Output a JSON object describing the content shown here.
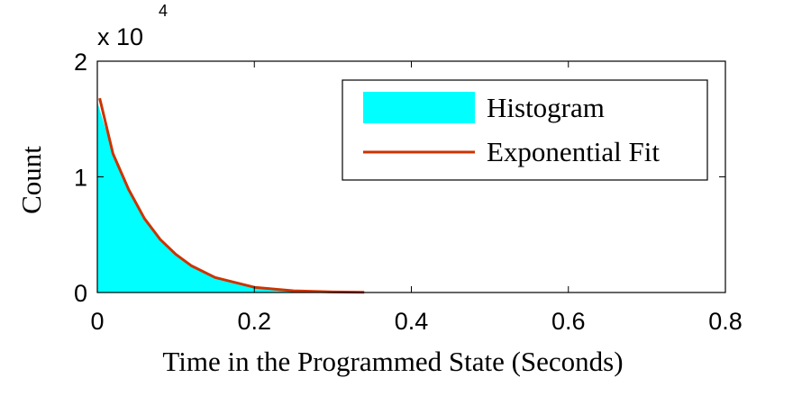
{
  "chart_data": {
    "type": "area",
    "xlabel": "Time in the Programmed State (Seconds)",
    "ylabel": "Count",
    "xlim": [
      0,
      0.8
    ],
    "ylim": [
      0,
      20000
    ],
    "x_ticks": [
      "0",
      "0.2",
      "0.4",
      "0.6",
      "0.8"
    ],
    "y_ticks": [
      "0",
      "1",
      "2"
    ],
    "y_exponent_base": "x 10",
    "y_exponent_power": "4",
    "grid": false,
    "legend_position": "top-right",
    "series": [
      {
        "name": "Histogram",
        "style": "filled-area",
        "color": "#00ffff",
        "x": [
          0,
          0.02,
          0.04,
          0.06,
          0.08,
          0.1,
          0.12,
          0.15,
          0.2,
          0.25,
          0.3,
          0.34
        ],
        "y": [
          16500,
          12000,
          8900,
          6400,
          4600,
          3300,
          2300,
          1300,
          450,
          150,
          50,
          0
        ]
      },
      {
        "name": "Exponential Fit",
        "style": "line",
        "color": "#cc3300",
        "x": [
          0.003,
          0.02,
          0.04,
          0.06,
          0.08,
          0.1,
          0.12,
          0.15,
          0.2,
          0.25,
          0.3,
          0.34
        ],
        "y": [
          16800,
          12000,
          8900,
          6400,
          4600,
          3300,
          2300,
          1300,
          450,
          150,
          50,
          20
        ]
      }
    ]
  }
}
